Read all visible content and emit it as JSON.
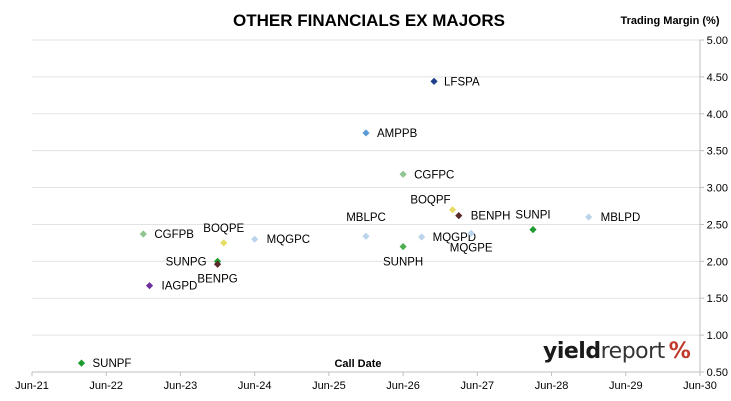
{
  "chart_data": {
    "type": "scatter",
    "title": "OTHER FINANCIALS EX MAJORS",
    "ylabel": "Trading Margin (%)",
    "xlabel": "Call Date",
    "ylim": [
      0.5,
      5.0
    ],
    "yticks": [
      "0.50",
      "1.00",
      "1.50",
      "2.00",
      "2.50",
      "3.00",
      "3.50",
      "4.00",
      "4.50",
      "5.00"
    ],
    "xlim": [
      "2021-06",
      "2030-06"
    ],
    "xticks": [
      "Jun-21",
      "Jun-22",
      "Jun-23",
      "Jun-24",
      "Jun-25",
      "Jun-26",
      "Jun-27",
      "Jun-28",
      "Jun-29",
      "Jun-30"
    ],
    "y_axis_side": "right",
    "grid": "horizontal",
    "points": [
      {
        "label": "LFSPA",
        "x": "2026-11",
        "y": 4.44,
        "color": "#1f3f8a"
      },
      {
        "label": "AMPPB",
        "x": "2025-12",
        "y": 3.74,
        "color": "#5b9bd5"
      },
      {
        "label": "CGFPC",
        "x": "2026-06",
        "y": 3.18,
        "color": "#90c490"
      },
      {
        "label": "BOQPF",
        "x": "2027-02",
        "y": 2.7,
        "color": "#e6dc64"
      },
      {
        "label": "BENPH",
        "x": "2027-03",
        "y": 2.62,
        "color": "#5a2a2a"
      },
      {
        "label": "SUNPI",
        "x": "2028-03",
        "y": 2.43,
        "color": "#1e9b2e"
      },
      {
        "label": "MBLPD",
        "x": "2028-12",
        "y": 2.6,
        "color": "#bcd3ec"
      },
      {
        "label": "CGFPB",
        "x": "2022-12",
        "y": 2.37,
        "color": "#90c490"
      },
      {
        "label": "BOQPE",
        "x": "2024-01",
        "y": 2.25,
        "color": "#e6dc64"
      },
      {
        "label": "MQGPC",
        "x": "2024-06",
        "y": 2.3,
        "color": "#bcd3ec"
      },
      {
        "label": "MBLPC",
        "x": "2025-12",
        "y": 2.34,
        "color": "#bcd3ec"
      },
      {
        "label": "SUNPH",
        "x": "2026-06",
        "y": 2.2,
        "color": "#4caf50"
      },
      {
        "label": "MQGPD",
        "x": "2026-09",
        "y": 2.33,
        "color": "#bcd3ec"
      },
      {
        "label": "MQGPE",
        "x": "2027-05",
        "y": 2.38,
        "color": "#bcd3ec"
      },
      {
        "label": "SUNPG",
        "x": "2023-12",
        "y": 2.0,
        "color": "#1e9b2e"
      },
      {
        "label": "BENPG",
        "x": "2023-12",
        "y": 1.96,
        "color": "#5a2a2a"
      },
      {
        "label": "IAGPD",
        "x": "2023-01",
        "y": 1.67,
        "color": "#7030a0"
      },
      {
        "label": "SUNPF",
        "x": "2022-02",
        "y": 0.62,
        "color": "#1e9b2e"
      }
    ]
  },
  "watermark": {
    "part1": "yield",
    "part2": "report",
    "symbol": "%"
  }
}
